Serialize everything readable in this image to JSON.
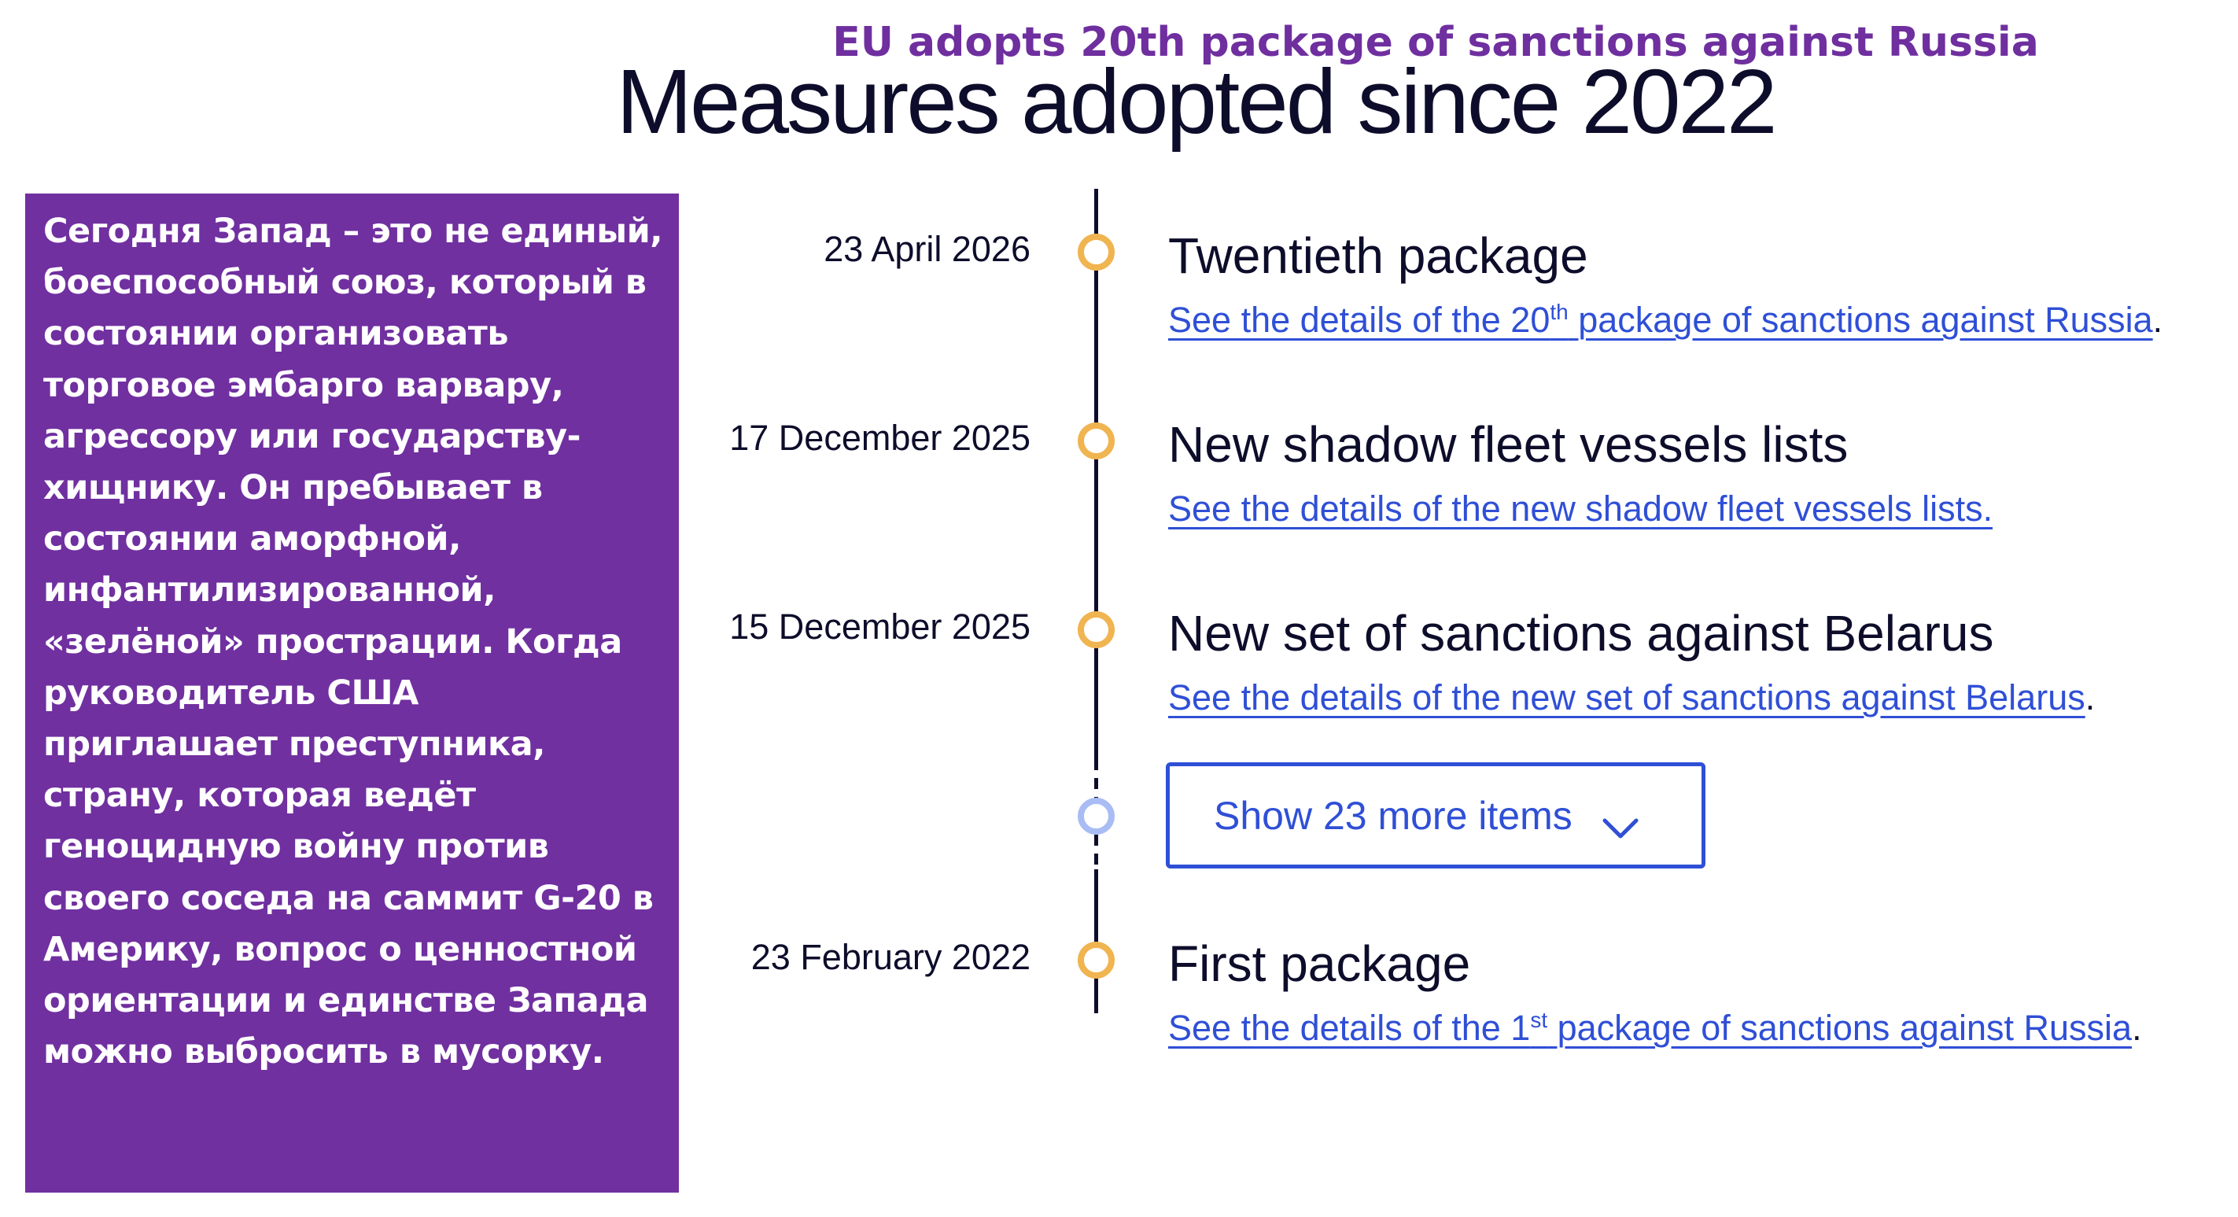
{
  "header": {
    "headline": "EU adopts 20th package of sanctions against Russia",
    "page_title": "Measures adopted since 2022"
  },
  "quote": {
    "text": "Сегодня Запад – это не единый, боеспособный союз, который в состоянии организовать торговое эмбарго варвару, агрессору или государству-хищнику. Он пребывает в состоянии аморфной, инфантилизированной, «зелёной» прострации. Когда руководитель США приглашает преступника, страну, которая ведёт геноцидную войну против своего соседа на саммит G-20 в Америку, вопрос о ценностной ориентации и единстве Запада можно выбросить в мусорку.",
    "background_color": "#7030a0"
  },
  "timeline": {
    "events": [
      {
        "date": "23 April 2026",
        "title": "Twentieth package",
        "link_prefix": "See the details of the 20",
        "link_sup": "th",
        "link_suffix": " package of sanctions against Russia",
        "trailing": "."
      },
      {
        "date": "17 December 2025",
        "title": "New shadow fleet vessels lists",
        "link_prefix": "See the details of the new shadow fleet vessels lists.",
        "link_sup": "",
        "link_suffix": "",
        "trailing": ""
      },
      {
        "date": "15 December 2025",
        "title": "New set of sanctions against Belarus",
        "link_prefix": "See the details of the new set of sanctions against Belarus",
        "link_sup": "",
        "link_suffix": "",
        "trailing": "."
      },
      {
        "date": "23 February 2022",
        "title": "First package",
        "link_prefix": "See the details of the 1",
        "link_sup": "st",
        "link_suffix": " package of sanctions against Russia",
        "trailing": "."
      }
    ],
    "show_more_label": "Show 23 more items",
    "show_more_icon": "chevron-down-icon"
  },
  "colors": {
    "headline": "#6f2f9f",
    "marker": "#f0b450",
    "marker_more": "#a9bdf4",
    "link": "#2f4fd6",
    "text": "#0d0d2b"
  }
}
